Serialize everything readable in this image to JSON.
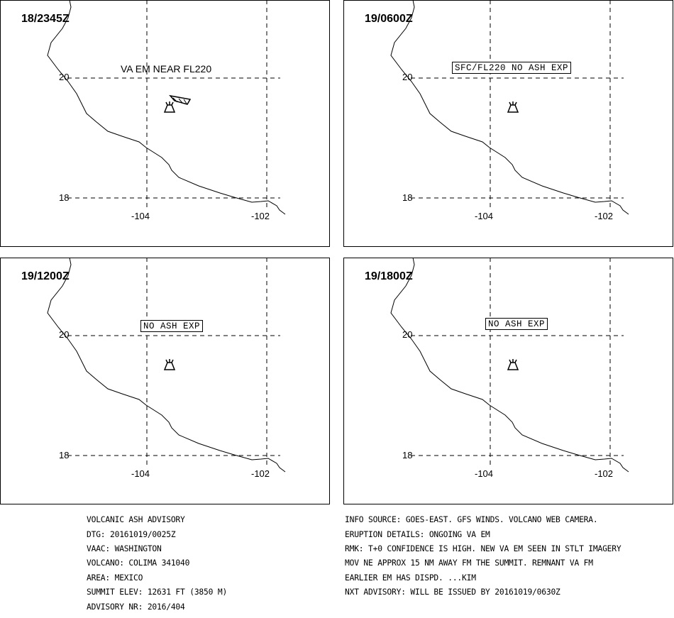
{
  "panels": [
    {
      "time": "18/2345Z",
      "label": "VA EM NEAR FL220",
      "label_boxed": false
    },
    {
      "time": "19/0600Z",
      "label": "SFC/FL220 NO ASH EXP",
      "label_boxed": true
    },
    {
      "time": "19/1200Z",
      "label": "NO ASH EXP",
      "label_boxed": true
    },
    {
      "time": "19/1800Z",
      "label": "NO ASH EXP",
      "label_boxed": true
    }
  ],
  "axes": {
    "lat_labels": [
      "20",
      "18"
    ],
    "lon_labels": [
      "-104",
      "-102"
    ]
  },
  "advisory_left": [
    "VOLCANIC ASH ADVISORY",
    "DTG: 20161019/0025Z",
    "VAAC: WASHINGTON",
    "VOLCANO: COLIMA 341040",
    "AREA: MEXICO",
    "SUMMIT ELEV: 12631 FT (3850 M)",
    "ADVISORY NR: 2016/404"
  ],
  "advisory_right": [
    "INFO SOURCE: GOES-EAST. GFS WINDS. VOLCANO WEB CAMERA.",
    "ERUPTION DETAILS: ONGOING VA EM",
    "RMK: T+0 CONFIDENCE IS HIGH. NEW VA EM SEEN IN STLT IMAGERY",
    "MOV NE APPROX 15 NM AWAY FM THE SUMMIT. REMNANT VA FM",
    "EARLIER EM HAS DISPD. ...KIM",
    "NXT ADVISORY: WILL BE ISSUED BY 20161019/0630Z"
  ],
  "icons": {
    "volcano": "volcano-icon",
    "ash_area": "ash-polygon"
  }
}
